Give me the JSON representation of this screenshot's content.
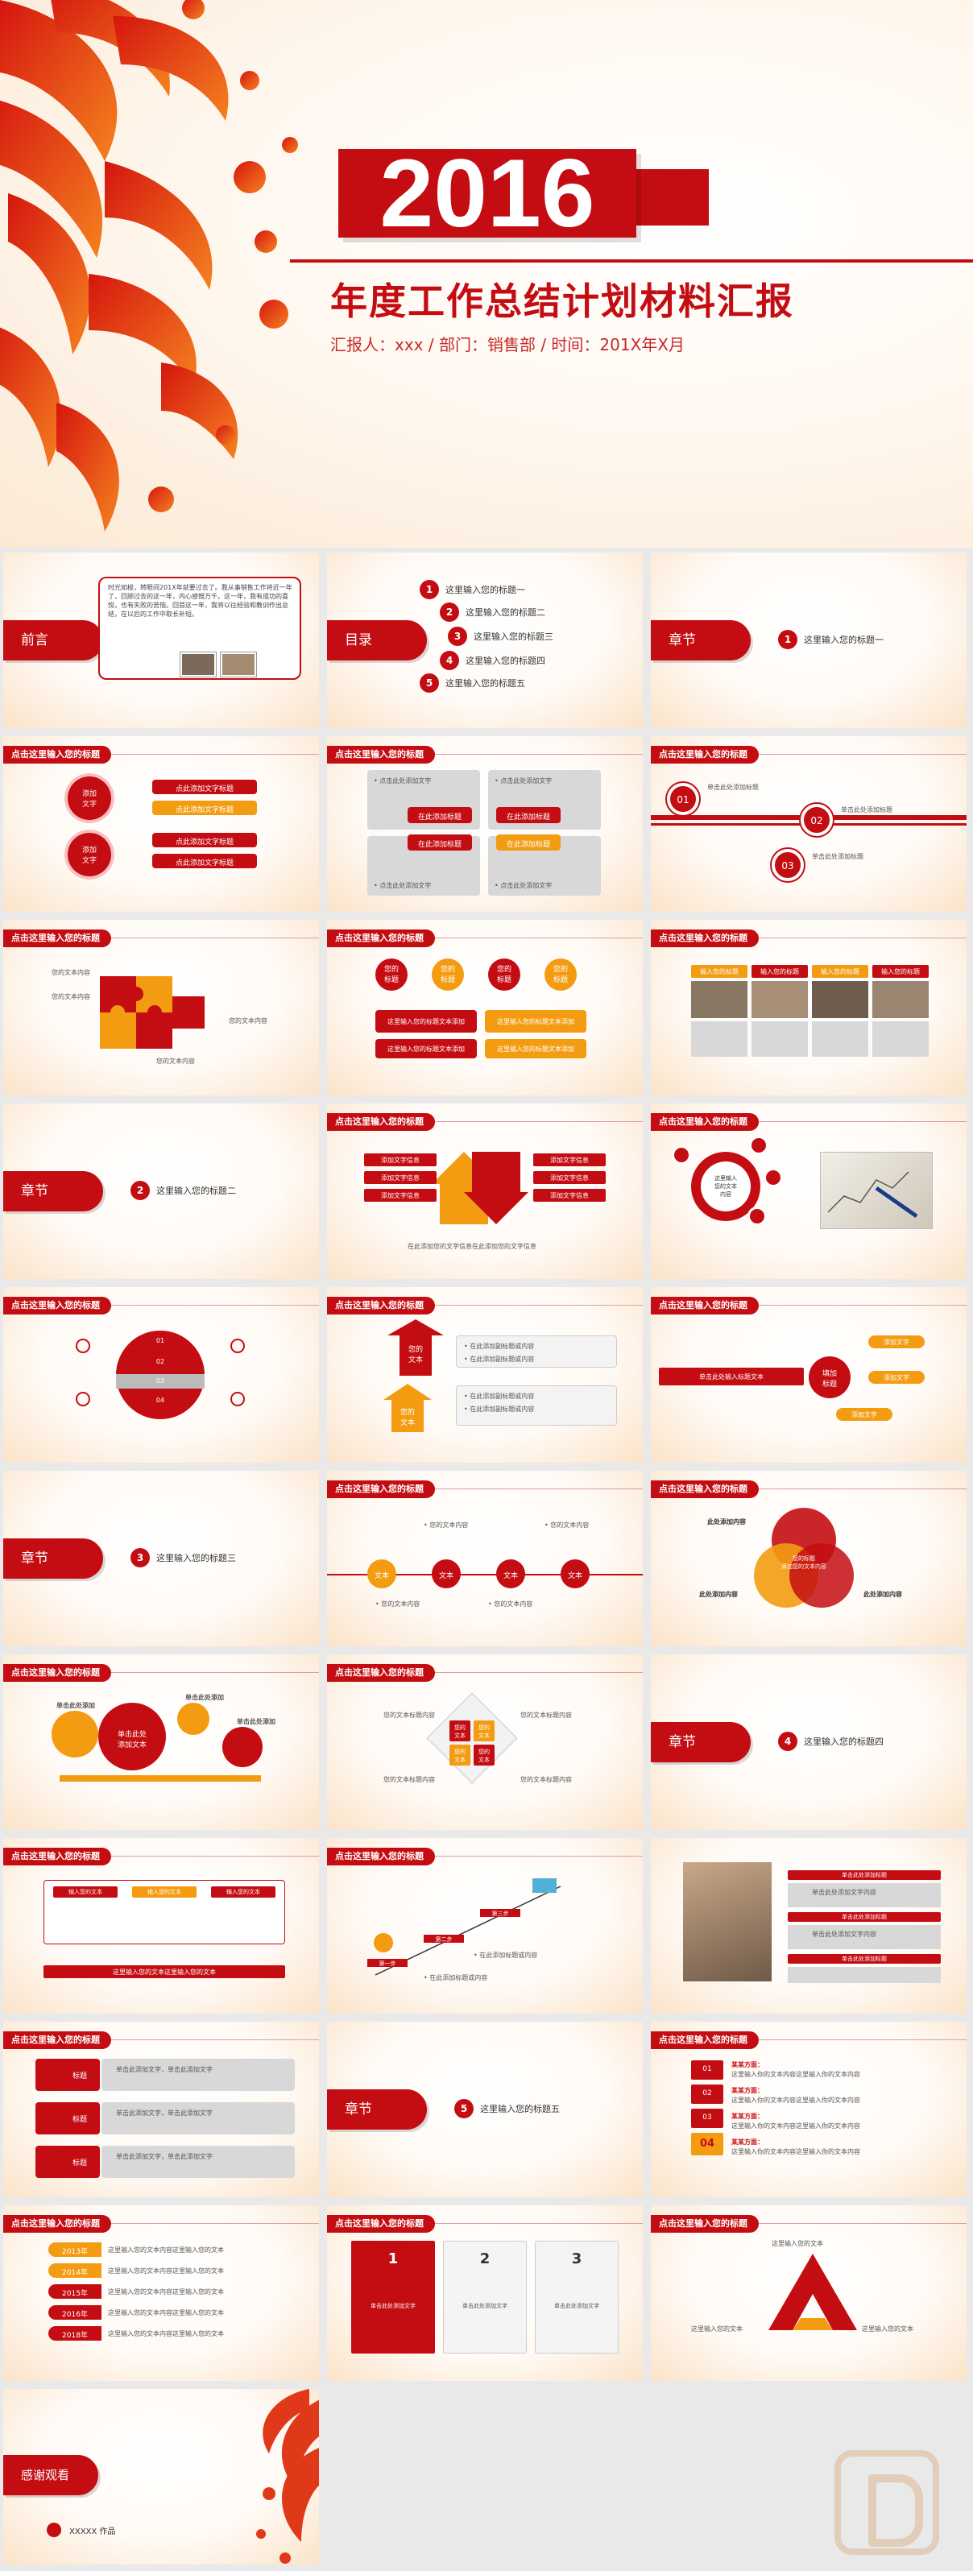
{
  "cover": {
    "year": "2016",
    "title": "年度工作总结计划材料汇报",
    "subtitle": "汇报人：xxx   /  部门：销售部 / 时间：201X年X月"
  },
  "common": {
    "header": "点击这里输入您的标题",
    "chapter": "章节"
  },
  "preface": {
    "label": "前言",
    "text": "时光如梭，转眼间201X年就要过去了。我从事销售工作将近一年了，回顾过去的这一年，内心感慨万千。这一年，我有成功的喜悦，也有失败的苦恼。回首这一年，我将以往经验和教训作出总结，在以后的工作中取长补短。"
  },
  "toc": {
    "label": "目录",
    "items": [
      "这里输入您的标题一",
      "这里输入您的标题二",
      "这里输入您的标题三",
      "这里输入您的标题四",
      "这里输入您的标题五"
    ]
  },
  "chapters": [
    {
      "num": "1",
      "title": "这里输入您的标题一"
    },
    {
      "num": "2",
      "title": "这里输入您的标题二"
    },
    {
      "num": "3",
      "title": "这里输入您的标题三"
    },
    {
      "num": "4",
      "title": "这里输入您的标题四"
    },
    {
      "num": "5",
      "title": "这里输入您的标题五"
    }
  ],
  "s4": {
    "circle": "添加\n文字",
    "circle2": "添加\n文字",
    "bar": "点此添加文字标题"
  },
  "s5": {
    "bullet": "• 点击此处添加文字",
    "bar": "在此添加标题"
  },
  "s6": {
    "n1": "01",
    "n2": "02",
    "n3": "03",
    "line": "单击此处添加标题"
  },
  "s7": {
    "label": "您的文本内容"
  },
  "s8": {
    "bubble": "您的\n标题",
    "bar": "这里输入您的标题文本添加"
  },
  "s9": {
    "tab": "输入您的标题"
  },
  "s11": {
    "item": "添加文字信息",
    "note": "在此添加您的文字信息在此添加您的文字信息"
  },
  "s12": {
    "center": "这里输入\n您的文本\n内容"
  },
  "s14": {
    "label": "您的\n文本",
    "item": "• 在此添加副标题或内容"
  },
  "s15": {
    "center": "填加\n标题",
    "tag": "添加文字",
    "left": "单击此处输入标题文本"
  },
  "s17": {
    "dot": "文本",
    "item": "• 您的文本内容"
  },
  "s18": {
    "title": "此处添加内容",
    "center": "您的标题\n添加您的文本内容"
  },
  "s19": {
    "gear": "单击此处\n添加文本",
    "label": "单击此处添加"
  },
  "s20": {
    "cell": "您的\n文本",
    "side": "您的文本标题内容"
  },
  "s22": {
    "tab1": "输入您的文本",
    "tab2": "输入您的文本",
    "tab3": "输入您的文本",
    "footer": "这里输入您的文本这里输入您的文本"
  },
  "s23": {
    "step1": "第一步",
    "step2": "第二步",
    "step3": "第三步",
    "item": "• 在此添加标题或内容"
  },
  "s24": {
    "bar": "单击此处添加标题",
    "line": "单击此处添加文字内容"
  },
  "s25": {
    "label": "标题",
    "text": "单击此添加文字，单击此添加文字"
  },
  "s27": {
    "head": "某某方面：",
    "text": "这里输入你的文本内容这里输入你的文本内容",
    "last": "04"
  },
  "s28": {
    "years": [
      "2013年",
      "2014年",
      "2015年",
      "2016年",
      "2018年"
    ],
    "text": "这里输入您的文本内容这里输入您的文本"
  },
  "s29": {
    "n1": "1",
    "n2": "2",
    "n3": "3",
    "text": "单击此处添加文字"
  },
  "s30": {
    "top": "这里输入您的文本",
    "left": "这里输入您的文本",
    "right": "这里输入您的文本"
  },
  "ending": {
    "label": "感谢观看",
    "author": "XXXXX  作品"
  },
  "colors": {
    "brand": "#c40d12",
    "accent": "#f39c12"
  }
}
